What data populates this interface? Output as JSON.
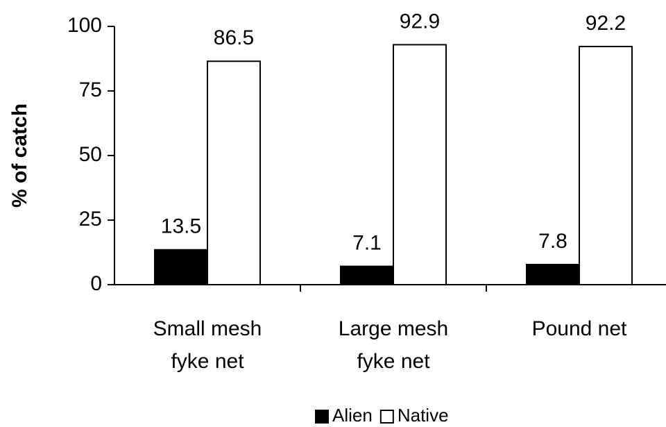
{
  "chart_data": {
    "type": "bar",
    "y_label": "% of catch",
    "categories": [
      [
        "Small mesh",
        "fyke net"
      ],
      [
        "Large mesh",
        "fyke net"
      ],
      [
        "Pound net"
      ]
    ],
    "series": [
      {
        "name": "Alien",
        "color": "#000000",
        "values": [
          13.5,
          7.1,
          7.8
        ]
      },
      {
        "name": "Native",
        "color": "#ffffff",
        "values": [
          86.5,
          92.9,
          92.2
        ]
      }
    ],
    "ylim": [
      0,
      100
    ],
    "yticks": [
      0,
      25,
      50,
      75,
      100
    ],
    "grid": false,
    "legend": "bottom"
  }
}
